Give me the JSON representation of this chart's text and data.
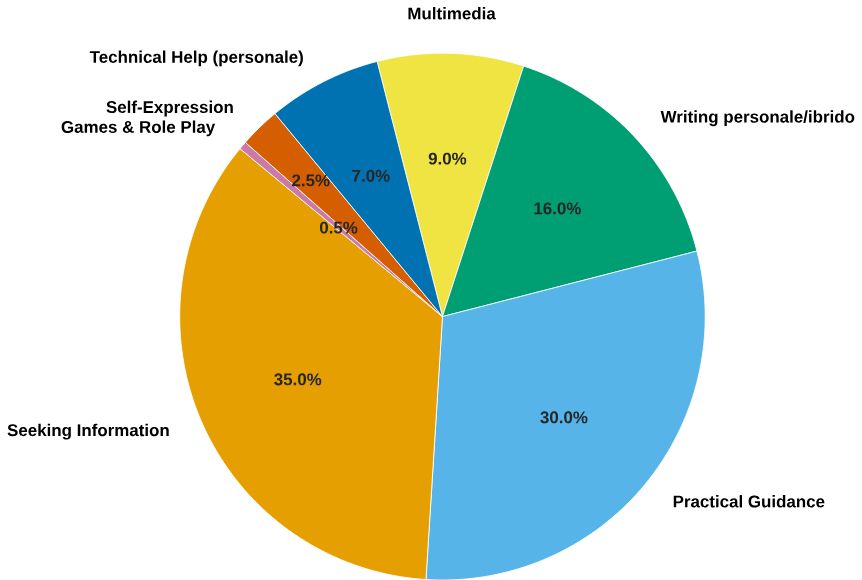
{
  "chart_data": {
    "type": "pie",
    "categories": [
      "Multimedia",
      "Writing personale/ibrido",
      "Practical Guidance",
      "Seeking Information",
      "Games & Role Play",
      "Self-Expression",
      "Technical Help (personale)"
    ],
    "values": [
      9.0,
      16.0,
      30.0,
      35.0,
      0.5,
      2.5,
      7.0
    ],
    "colors": [
      "#f0e442",
      "#009e73",
      "#56b4e9",
      "#e69f00",
      "#cc79a7",
      "#d55e00",
      "#0072b2"
    ],
    "value_labels": [
      "9.0%",
      "16.0%",
      "30.0%",
      "35.0%",
      "0.5%",
      "2.5%",
      "7.0%"
    ]
  }
}
